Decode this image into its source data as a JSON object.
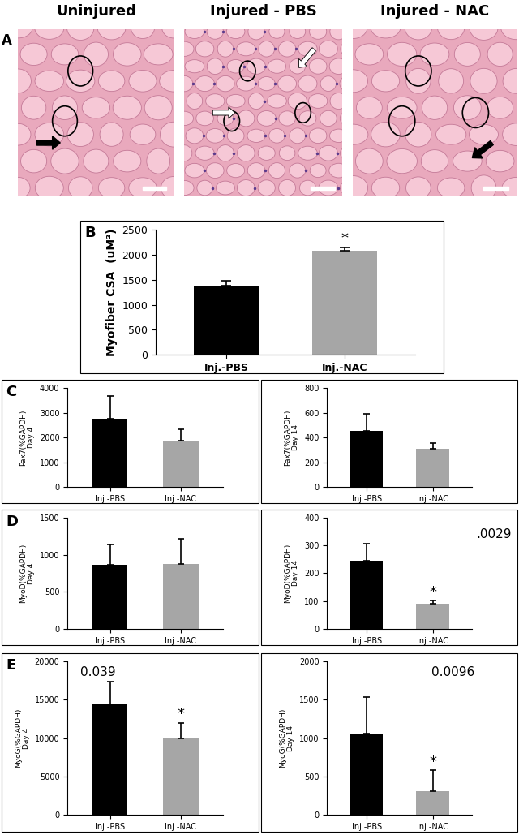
{
  "histology": {
    "label": "A",
    "titles": [
      "Uninjured",
      "Injured - PBS",
      "Injured - NAC"
    ]
  },
  "chart_data": [
    {
      "type": "bar",
      "panel": "B",
      "ylabel": "Myofiber CSA  (uM²)",
      "categories": [
        "Inj.-PBS",
        "Inj.-NAC"
      ],
      "values": [
        1390,
        2080
      ],
      "errors": [
        90,
        70
      ],
      "colors": [
        "#000000",
        "#a6a6a6"
      ],
      "ylim": [
        0,
        2500
      ],
      "yticks": [
        0,
        500,
        1000,
        1500,
        2000,
        2500
      ],
      "annotations": [
        {
          "text": "*",
          "category": "Inj.-NAC"
        }
      ]
    },
    {
      "type": "bar",
      "panel": "C",
      "ylabel": "Pax7(%GAPDH)\nDay 4",
      "categories": [
        "Inj.-PBS",
        "Inj.-NAC"
      ],
      "values": [
        2750,
        1870
      ],
      "errors": [
        930,
        460
      ],
      "colors": [
        "#000000",
        "#a6a6a6"
      ],
      "ylim": [
        0,
        4000
      ],
      "yticks": [
        0,
        1000,
        2000,
        3000,
        4000
      ]
    },
    {
      "type": "bar",
      "ylabel": "Pax7(%GAPDH)\nDay 14",
      "categories": [
        "Inj.-PBS",
        "Inj.-NAC"
      ],
      "values": [
        455,
        310
      ],
      "errors": [
        140,
        45
      ],
      "colors": [
        "#000000",
        "#a6a6a6"
      ],
      "ylim": [
        0,
        800
      ],
      "yticks": [
        0,
        200,
        400,
        600,
        800
      ]
    },
    {
      "type": "bar",
      "panel": "D",
      "ylabel": "MyoD(%GAPDH)\nDay 4",
      "categories": [
        "Inj.-PBS",
        "Inj.-NAC"
      ],
      "values": [
        860,
        870
      ],
      "errors": [
        280,
        350
      ],
      "colors": [
        "#000000",
        "#a6a6a6"
      ],
      "ylim": [
        0,
        1500
      ],
      "yticks": [
        0,
        500,
        1000,
        1500
      ]
    },
    {
      "type": "bar",
      "ylabel": "MyoD(%GAPDH)\nDay 14",
      "categories": [
        "Inj.-PBS",
        "Inj.-NAC"
      ],
      "values": [
        245,
        90
      ],
      "errors": [
        60,
        12
      ],
      "colors": [
        "#000000",
        "#a6a6a6"
      ],
      "ylim": [
        0,
        400
      ],
      "yticks": [
        0,
        100,
        200,
        300,
        400
      ],
      "annotations": [
        {
          "text": "*",
          "category": "Inj.-NAC"
        }
      ],
      "p_value": ".0029"
    },
    {
      "type": "bar",
      "panel": "E",
      "ylabel": "MyoG(%GAPDH)\nDay 4",
      "categories": [
        "Inj.-PBS",
        "Inj.-NAC"
      ],
      "values": [
        14400,
        10000
      ],
      "errors": [
        3000,
        2000
      ],
      "colors": [
        "#000000",
        "#a6a6a6"
      ],
      "ylim": [
        0,
        20000
      ],
      "yticks": [
        0,
        5000,
        10000,
        15000,
        20000
      ],
      "annotations": [
        {
          "text": "*",
          "category": "Inj.-NAC"
        }
      ],
      "p_value": "0.039"
    },
    {
      "type": "bar",
      "ylabel": "MyoG(%GAPDH)\nDay 14",
      "categories": [
        "Inj.-PBS",
        "Inj.-NAC"
      ],
      "values": [
        1060,
        310
      ],
      "errors": [
        470,
        270
      ],
      "colors": [
        "#000000",
        "#a6a6a6"
      ],
      "ylim": [
        0,
        2000
      ],
      "yticks": [
        0,
        500,
        1000,
        1500,
        2000
      ],
      "annotations": [
        {
          "text": "*",
          "category": "Inj.-NAC"
        }
      ],
      "p_value": "0.0096"
    }
  ]
}
